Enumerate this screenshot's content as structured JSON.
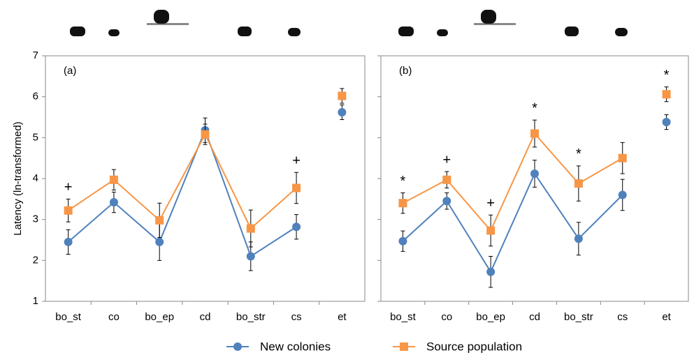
{
  "chart_data": [
    {
      "type": "line",
      "panel_label": "(a)",
      "y_label": "Latency (ln-transformed)",
      "categories": [
        "bo_st",
        "co",
        "bo_ep",
        "cd",
        "bo_str",
        "cs",
        "et"
      ],
      "ylim": [
        1,
        7
      ],
      "yticks": [
        1,
        2,
        3,
        4,
        5,
        6,
        7
      ],
      "series": [
        {
          "name": "New colonies",
          "color": "#4f81bd",
          "marker": "circle",
          "values": [
            2.45,
            3.42,
            2.45,
            5.18,
            2.1,
            2.82,
            5.62
          ],
          "errors": [
            0.3,
            0.25,
            0.45,
            0.3,
            0.35,
            0.3,
            0.18
          ]
        },
        {
          "name": "Source population",
          "color": "#f79646",
          "marker": "square",
          "values": [
            3.22,
            3.97,
            2.98,
            5.08,
            2.78,
            3.77,
            6.02
          ],
          "errors": [
            0.28,
            0.25,
            0.42,
            0.25,
            0.45,
            0.38,
            0.18
          ]
        }
      ],
      "annotations": [
        "+",
        null,
        null,
        null,
        null,
        "+",
        null
      ]
    },
    {
      "type": "line",
      "panel_label": "(b)",
      "categories": [
        "bo_st",
        "co",
        "bo_ep",
        "cd",
        "bo_str",
        "cs",
        "et"
      ],
      "ylim": [
        1,
        7
      ],
      "yticks": [
        1,
        2,
        3,
        4,
        5,
        6,
        7
      ],
      "series": [
        {
          "name": "New colonies",
          "color": "#4f81bd",
          "marker": "circle",
          "values": [
            2.47,
            3.45,
            1.72,
            4.12,
            2.53,
            3.6,
            5.38
          ],
          "errors": [
            0.25,
            0.2,
            0.38,
            0.33,
            0.4,
            0.38,
            0.18
          ]
        },
        {
          "name": "Source population",
          "color": "#f79646",
          "marker": "square",
          "values": [
            3.4,
            3.97,
            2.73,
            5.1,
            3.88,
            4.5,
            6.06
          ],
          "errors": [
            0.25,
            0.2,
            0.38,
            0.33,
            0.43,
            0.38,
            0.18
          ]
        }
      ],
      "annotations": [
        "*",
        "+",
        "+",
        "*",
        "*",
        null,
        "*"
      ]
    }
  ]
}
